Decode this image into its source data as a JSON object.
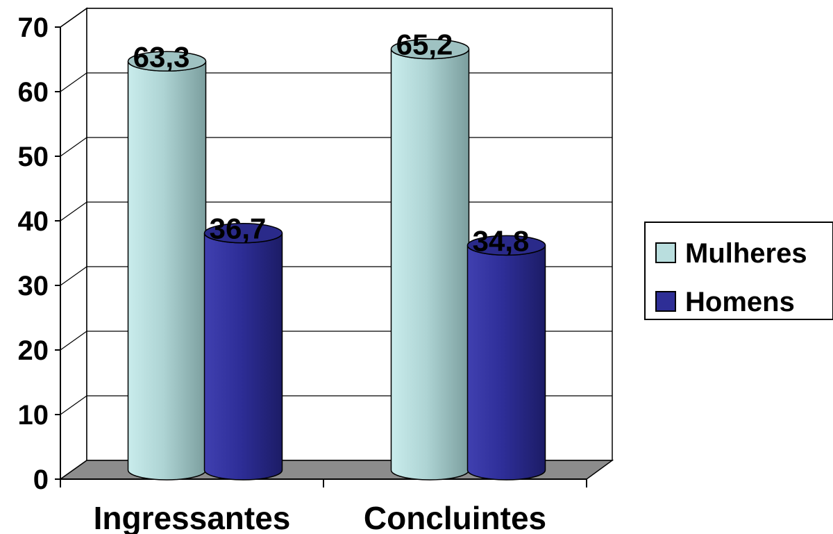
{
  "chart_data": {
    "type": "bar",
    "style": "3d-cylinder",
    "categories": [
      "Ingressantes",
      "Concluintes"
    ],
    "series": [
      {
        "name": "Mulheres",
        "values": [
          63.3,
          65.2
        ],
        "color": "#b9dede",
        "label_text": [
          "63,3",
          "65,2"
        ]
      },
      {
        "name": "Homens",
        "values": [
          36.7,
          34.8
        ],
        "color": "#2e2e96",
        "label_text": [
          "36,7",
          "34,8"
        ]
      }
    ],
    "ylim": [
      0,
      70
    ],
    "yticks": [
      "0",
      "10",
      "20",
      "30",
      "40",
      "50",
      "60",
      "70"
    ],
    "grid": true,
    "legend_position": "right",
    "title": "",
    "xlabel": "",
    "ylabel": ""
  }
}
